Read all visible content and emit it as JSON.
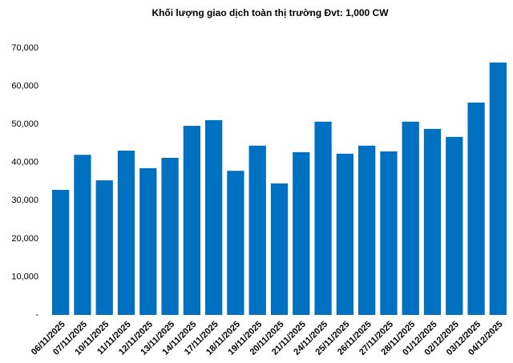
{
  "chart_data": {
    "type": "bar",
    "title": "Khối lượng giao dịch toàn thị trường Đvt: 1,000 CW",
    "categories": [
      "06/11/2025",
      "07/11/2025",
      "10/11/2025",
      "11/11/2025",
      "12/11/2025",
      "13/11/2025",
      "14/11/2025",
      "17/11/2025",
      "18/11/2025",
      "19/11/2025",
      "20/11/2025",
      "21/11/2025",
      "24/11/2025",
      "25/11/2025",
      "26/11/2025",
      "27/11/2025",
      "28/11/2025",
      "01/12/2025",
      "02/12/2025",
      "03/12/2025",
      "04/12/2025"
    ],
    "values": [
      32800,
      42000,
      35300,
      43100,
      38500,
      41200,
      49600,
      51100,
      37800,
      44400,
      34500,
      42700,
      50700,
      42300,
      44400,
      42900,
      50700,
      48800,
      46700,
      55700,
      66200
    ],
    "color": "#0070c0",
    "ylim": [
      0,
      70000
    ],
    "yticks": [
      {
        "value": 0,
        "label": "-"
      },
      {
        "value": 10000,
        "label": "10,000"
      },
      {
        "value": 20000,
        "label": "20,000"
      },
      {
        "value": 30000,
        "label": "30,000"
      },
      {
        "value": 40000,
        "label": "40,000"
      },
      {
        "value": 50000,
        "label": "50,000"
      },
      {
        "value": 60000,
        "label": "60,000"
      },
      {
        "value": 70000,
        "label": "70,000"
      }
    ],
    "grid": false
  }
}
